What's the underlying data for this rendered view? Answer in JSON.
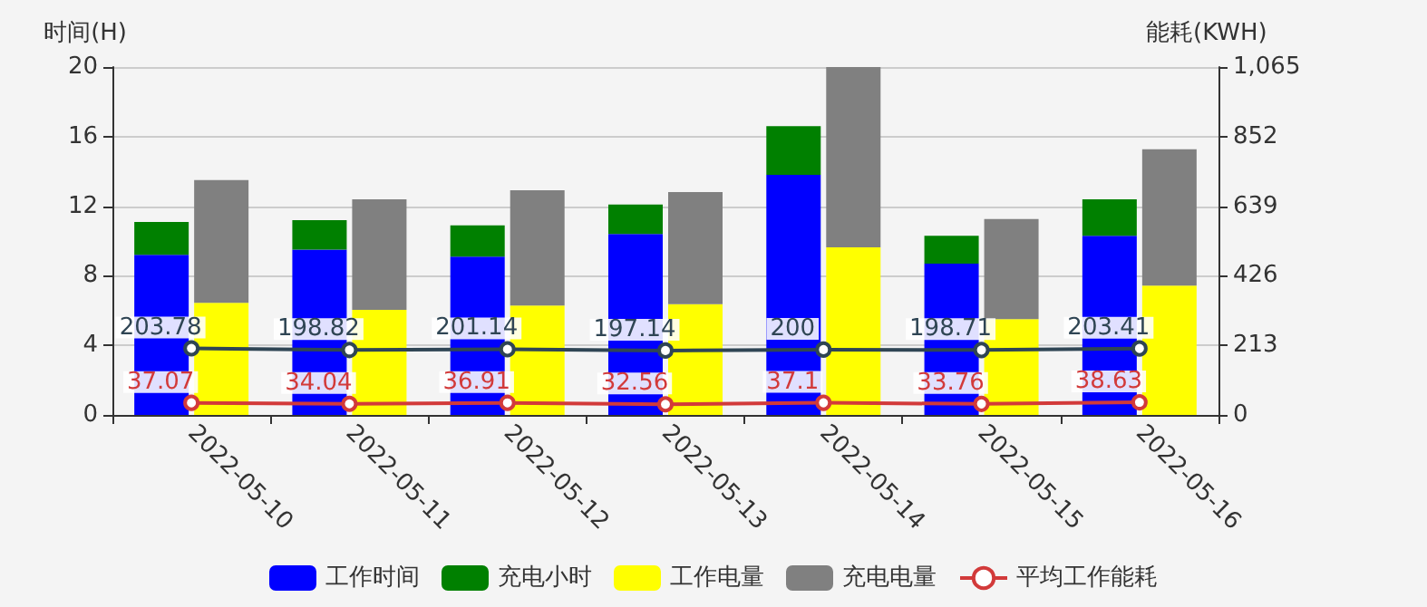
{
  "chart_data": {
    "type": "bar",
    "ylabel": "时间(H)",
    "y2label": "能耗(KWH)",
    "categories": [
      "2022-05-10",
      "2022-05-11",
      "2022-05-12",
      "2022-05-13",
      "2022-05-14",
      "2022-05-15",
      "2022-05-16"
    ],
    "stacked": true,
    "ylim": [
      0,
      20
    ],
    "yticks": [
      0,
      4,
      8,
      12,
      16,
      20
    ],
    "y2lim": [
      0,
      1065
    ],
    "y2ticks": [
      0,
      213,
      426,
      639,
      852,
      {
        "value": 1065,
        "label": "1,065"
      }
    ],
    "grid": "y",
    "legend": "bottom",
    "marker": "circle",
    "series": [
      {
        "name": "工作时间",
        "color": "#0000ff",
        "values": [
          9.2,
          9.5,
          9.1,
          10.4,
          13.8,
          8.7,
          10.3
        ]
      },
      {
        "name": "充电小时",
        "color": "#008000",
        "values": [
          1.9,
          1.7,
          1.8,
          1.7,
          2.8,
          1.6,
          2.1
        ]
      },
      {
        "name": "工作电量",
        "color": "#ffff00",
        "axis": "y2",
        "values": [
          343,
          322,
          335,
          339,
          513,
          293,
          396
        ]
      },
      {
        "name": "充电电量",
        "color": "#808080",
        "axis": "y2",
        "values": [
          376,
          338,
          353,
          343,
          552,
          307,
          417
        ]
      },
      {
        "name": "平均工作能耗",
        "type": "line",
        "color": "#d23a3a",
        "axis": "y2",
        "values": [
          37.07,
          34.04,
          36.91,
          32.56,
          37.1,
          33.76,
          38.63
        ],
        "value_labels": [
          "37.07",
          "34.04",
          "36.91",
          "32.56",
          "37.1",
          "33.76",
          "38.63"
        ]
      },
      {
        "type": "line",
        "color": "#2f4554",
        "axis": "y2",
        "values": [
          203.78,
          198.82,
          201.14,
          197.14,
          200,
          198.71,
          203.41
        ],
        "value_labels": [
          "203.78",
          "198.82",
          "201.14",
          "197.14",
          "200",
          "198.71",
          "203.41"
        ]
      }
    ]
  }
}
